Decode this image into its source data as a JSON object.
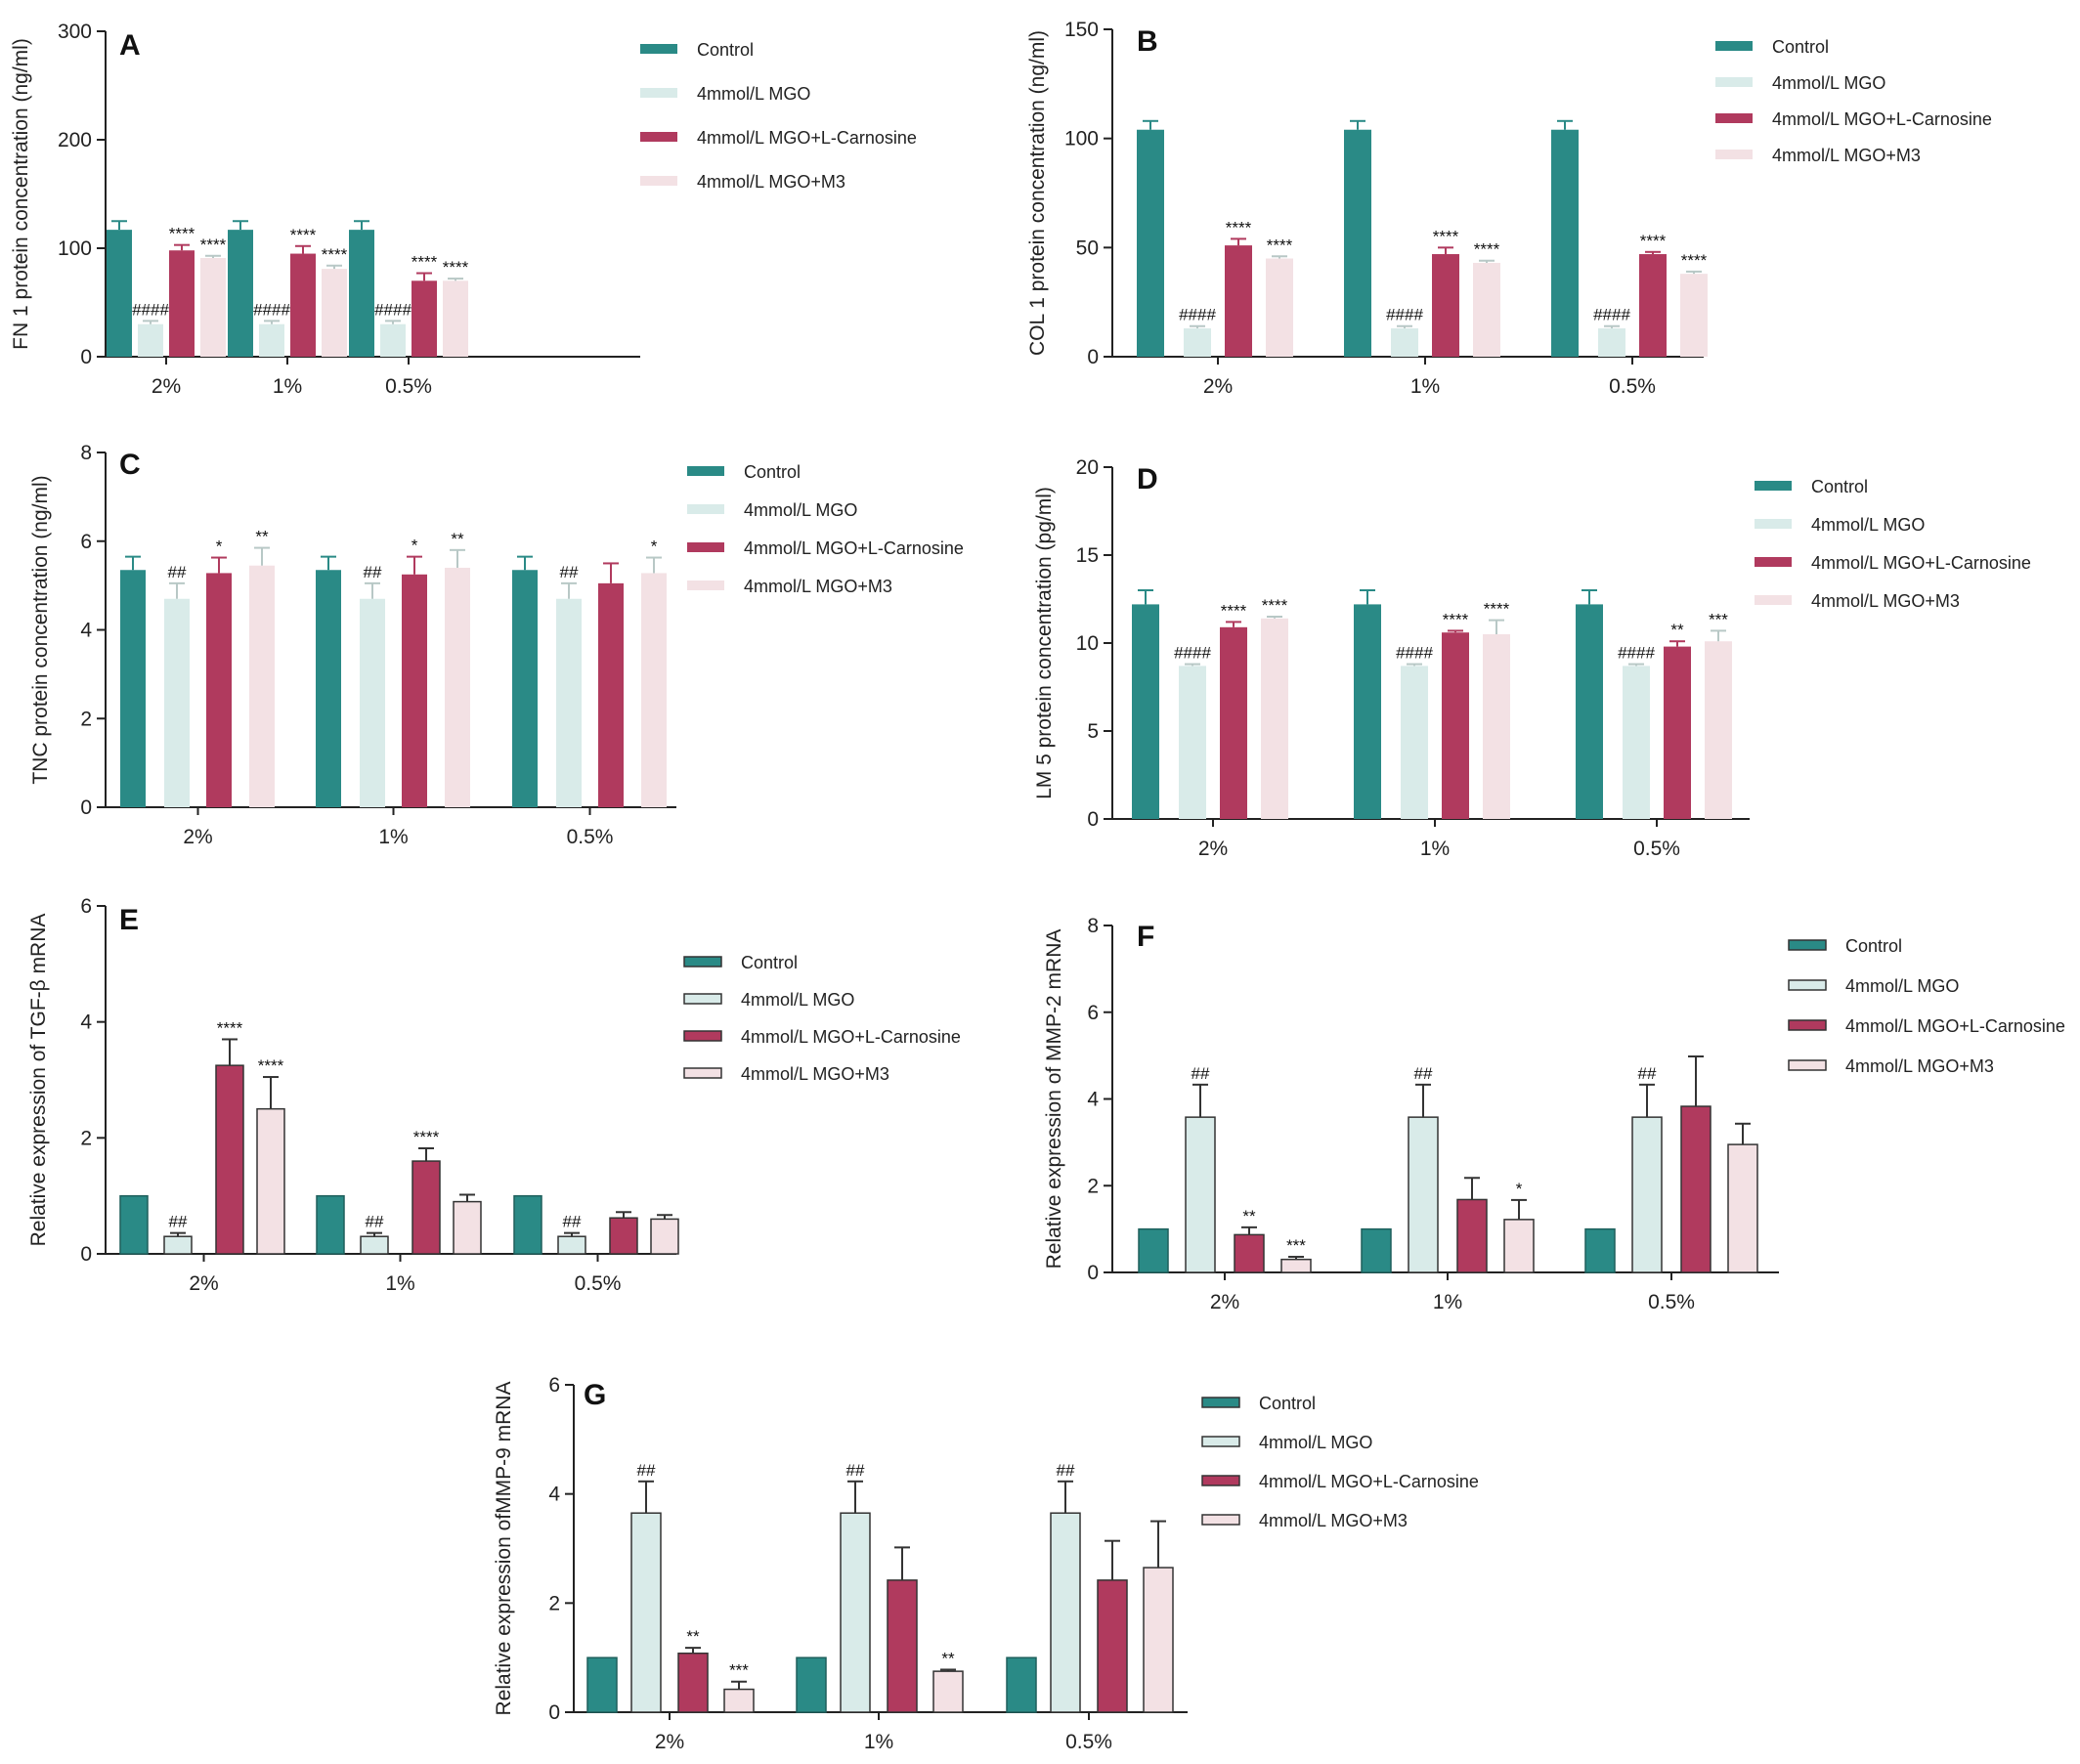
{
  "colors": {
    "control": "#2a8a86",
    "mgo": "#d9ebe9",
    "carnosine": "#b03a5e",
    "m3": "#f3e1e4",
    "errorbar_default": "#2a8a86"
  },
  "chart_data": [
    {
      "panel": "A",
      "type": "bar",
      "ylabel": "FN 1 protein concentration (ng/ml)",
      "ylim": [
        0,
        300
      ],
      "yticks": [
        0,
        100,
        200,
        300
      ],
      "categories": [
        "2%",
        "1%",
        "0.5%"
      ],
      "outlined": false,
      "legend": [
        "Control",
        "4mmol/L MGO",
        "4mmol/L MGO+L-Carnosine",
        "4mmol/L MGO+M3"
      ],
      "series": [
        {
          "name": "Control",
          "values": [
            117,
            117,
            117
          ],
          "errors": [
            8,
            8,
            8
          ],
          "labels": [
            "",
            "",
            ""
          ]
        },
        {
          "name": "4mmol/L MGO",
          "values": [
            30,
            30,
            30
          ],
          "errors": [
            3,
            3,
            3
          ],
          "labels": [
            "####",
            "####",
            "####"
          ]
        },
        {
          "name": "4mmol/L MGO+L-Carnosine",
          "values": [
            98,
            95,
            70
          ],
          "errors": [
            5,
            7,
            7
          ],
          "labels": [
            "****",
            "****",
            "****"
          ]
        },
        {
          "name": "4mmol/L MGO+M3",
          "values": [
            91,
            81,
            70
          ],
          "errors": [
            2,
            3,
            2
          ],
          "labels": [
            "****",
            "****",
            "****"
          ]
        }
      ]
    },
    {
      "panel": "B",
      "type": "bar",
      "ylabel": "COL 1 protein concentration (ng/ml)",
      "ylim": [
        0,
        150
      ],
      "yticks": [
        0,
        50,
        100,
        150
      ],
      "categories": [
        "2%",
        "1%",
        "0.5%"
      ],
      "outlined": false,
      "legend": [
        "Control",
        "4mmol/L MGO",
        "4mmol/L MGO+L-Carnosine",
        "4mmol/L MGO+M3"
      ],
      "series": [
        {
          "name": "Control",
          "values": [
            104,
            104,
            104
          ],
          "errors": [
            4,
            4,
            4
          ],
          "labels": [
            "",
            "",
            ""
          ]
        },
        {
          "name": "4mmol/L MGO",
          "values": [
            13,
            13,
            13
          ],
          "errors": [
            1,
            1,
            1
          ],
          "labels": [
            "####",
            "####",
            "####"
          ]
        },
        {
          "name": "4mmol/L MGO+L-Carnosine",
          "values": [
            51,
            47,
            47
          ],
          "errors": [
            3,
            3,
            1
          ],
          "labels": [
            "****",
            "****",
            "****"
          ]
        },
        {
          "name": "4mmol/L MGO+M3",
          "values": [
            45,
            43,
            38
          ],
          "errors": [
            1,
            1,
            1
          ],
          "labels": [
            "****",
            "****",
            "****"
          ]
        }
      ]
    },
    {
      "panel": "C",
      "type": "bar",
      "ylabel": "TNC protein concentration (ng/ml)",
      "ylim": [
        0,
        8
      ],
      "yticks": [
        0,
        2,
        4,
        6,
        8
      ],
      "categories": [
        "2%",
        "1%",
        "0.5%"
      ],
      "outlined": false,
      "legend": [
        "Control",
        "4mmol/L MGO",
        "4mmol/L MGO+L-Carnosine",
        "4mmol/L MGO+M3"
      ],
      "series": [
        {
          "name": "Control",
          "values": [
            5.35,
            5.35,
            5.35
          ],
          "errors": [
            0.3,
            0.3,
            0.3
          ],
          "labels": [
            "",
            "",
            ""
          ]
        },
        {
          "name": "4mmol/L MGO",
          "values": [
            4.7,
            4.7,
            4.7
          ],
          "errors": [
            0.35,
            0.35,
            0.35
          ],
          "labels": [
            "##",
            "##",
            "##"
          ]
        },
        {
          "name": "4mmol/L MGO+L-Carnosine",
          "values": [
            5.28,
            5.25,
            5.05
          ],
          "errors": [
            0.35,
            0.4,
            0.45
          ],
          "labels": [
            "*",
            "*",
            ""
          ]
        },
        {
          "name": "4mmol/L MGO+M3",
          "values": [
            5.45,
            5.4,
            5.28
          ],
          "errors": [
            0.4,
            0.4,
            0.35
          ],
          "labels": [
            "**",
            "**",
            "*"
          ]
        }
      ]
    },
    {
      "panel": "D",
      "type": "bar",
      "ylabel": "LM 5 protein concentration (pg/ml)",
      "ylim": [
        0,
        20
      ],
      "yticks": [
        0,
        5,
        10,
        15,
        20
      ],
      "categories": [
        "2%",
        "1%",
        "0.5%"
      ],
      "outlined": false,
      "legend": [
        "Control",
        "4mmol/L MGO",
        "4mmol/L MGO+L-Carnosine",
        "4mmol/L MGO+M3"
      ],
      "series": [
        {
          "name": "Control",
          "values": [
            12.2,
            12.2,
            12.2
          ],
          "errors": [
            0.8,
            0.8,
            0.8
          ],
          "labels": [
            "",
            "",
            ""
          ]
        },
        {
          "name": "4mmol/L MGO",
          "values": [
            8.7,
            8.7,
            8.7
          ],
          "errors": [
            0.1,
            0.1,
            0.1
          ],
          "labels": [
            "####",
            "####",
            "####"
          ]
        },
        {
          "name": "4mmol/L MGO+L-Carnosine",
          "values": [
            10.9,
            10.6,
            9.8
          ],
          "errors": [
            0.3,
            0.1,
            0.3
          ],
          "labels": [
            "****",
            "****",
            "**"
          ]
        },
        {
          "name": "4mmol/L MGO+M3",
          "values": [
            11.4,
            10.5,
            10.1
          ],
          "errors": [
            0.1,
            0.8,
            0.6
          ],
          "labels": [
            "****",
            "****",
            "***"
          ]
        }
      ]
    },
    {
      "panel": "E",
      "type": "bar",
      "ylabel": "Relative expression of TGF-β mRNA",
      "ylim": [
        0,
        6
      ],
      "yticks": [
        0,
        2,
        4,
        6
      ],
      "categories": [
        "2%",
        "1%",
        "0.5%"
      ],
      "outlined": true,
      "legend": [
        "Control",
        "4mmol/L MGO",
        "4mmol/L MGO+L-Carnosine",
        "4mmol/L MGO+M3"
      ],
      "series": [
        {
          "name": "Control",
          "values": [
            1.0,
            1.0,
            1.0
          ],
          "errors": [
            0,
            0,
            0
          ],
          "labels": [
            "",
            "",
            ""
          ]
        },
        {
          "name": "4mmol/L MGO",
          "values": [
            0.3,
            0.3,
            0.3
          ],
          "errors": [
            0.06,
            0.06,
            0.06
          ],
          "labels": [
            "##",
            "##",
            "##"
          ]
        },
        {
          "name": "4mmol/L MGO+L-Carnosine",
          "values": [
            3.25,
            1.6,
            0.62
          ],
          "errors": [
            0.45,
            0.22,
            0.1
          ],
          "labels": [
            "****",
            "****",
            ""
          ]
        },
        {
          "name": "4mmol/L MGO+M3",
          "values": [
            2.5,
            0.9,
            0.6
          ],
          "errors": [
            0.55,
            0.12,
            0.07
          ],
          "labels": [
            "****",
            "",
            ""
          ]
        }
      ]
    },
    {
      "panel": "F",
      "type": "bar",
      "ylabel": "Relative expression of MMP-2 mRNA",
      "ylim": [
        0,
        8
      ],
      "yticks": [
        0,
        2,
        4,
        6,
        8
      ],
      "categories": [
        "2%",
        "1%",
        "0.5%"
      ],
      "outlined": true,
      "legend": [
        "Control",
        "4mmol/L MGO",
        "4mmol/L MGO+L-Carnosine",
        "4mmol/L MGO+M3"
      ],
      "series": [
        {
          "name": "Control",
          "values": [
            1.0,
            1.0,
            1.0
          ],
          "errors": [
            0,
            0,
            0
          ],
          "labels": [
            "",
            "",
            ""
          ]
        },
        {
          "name": "4mmol/L MGO",
          "values": [
            3.58,
            3.58,
            3.58
          ],
          "errors": [
            0.75,
            0.75,
            0.75
          ],
          "labels": [
            "##",
            "##",
            "##"
          ]
        },
        {
          "name": "4mmol/L MGO+L-Carnosine",
          "values": [
            0.87,
            1.68,
            3.83
          ],
          "errors": [
            0.17,
            0.5,
            1.15
          ],
          "labels": [
            "**",
            "",
            ""
          ]
        },
        {
          "name": "4mmol/L MGO+M3",
          "values": [
            0.3,
            1.22,
            2.95
          ],
          "errors": [
            0.06,
            0.45,
            0.48
          ],
          "labels": [
            "***",
            "*",
            ""
          ]
        }
      ]
    },
    {
      "panel": "G",
      "type": "bar",
      "ylabel": "Relative expression ofMMP-9 mRNA",
      "ylim": [
        0,
        6
      ],
      "yticks": [
        0,
        2,
        4,
        6
      ],
      "categories": [
        "2%",
        "1%",
        "0.5%"
      ],
      "outlined": true,
      "legend": [
        "Control",
        "4mmol/L MGO",
        "4mmol/L MGO+L-Carnosine",
        "4mmol/L MGO+M3"
      ],
      "series": [
        {
          "name": "Control",
          "values": [
            1.0,
            1.0,
            1.0
          ],
          "errors": [
            0,
            0,
            0
          ],
          "labels": [
            "",
            "",
            ""
          ]
        },
        {
          "name": "4mmol/L MGO",
          "values": [
            3.65,
            3.65,
            3.65
          ],
          "errors": [
            0.58,
            0.58,
            0.58
          ],
          "labels": [
            "##",
            "##",
            "##"
          ]
        },
        {
          "name": "4mmol/L MGO+L-Carnosine",
          "values": [
            1.08,
            2.42,
            2.42
          ],
          "errors": [
            0.1,
            0.6,
            0.72
          ],
          "labels": [
            "**",
            "",
            ""
          ]
        },
        {
          "name": "4mmol/L MGO+M3",
          "values": [
            0.42,
            0.75,
            2.65
          ],
          "errors": [
            0.14,
            0.03,
            0.85
          ],
          "labels": [
            "***",
            "**",
            ""
          ]
        }
      ]
    }
  ]
}
